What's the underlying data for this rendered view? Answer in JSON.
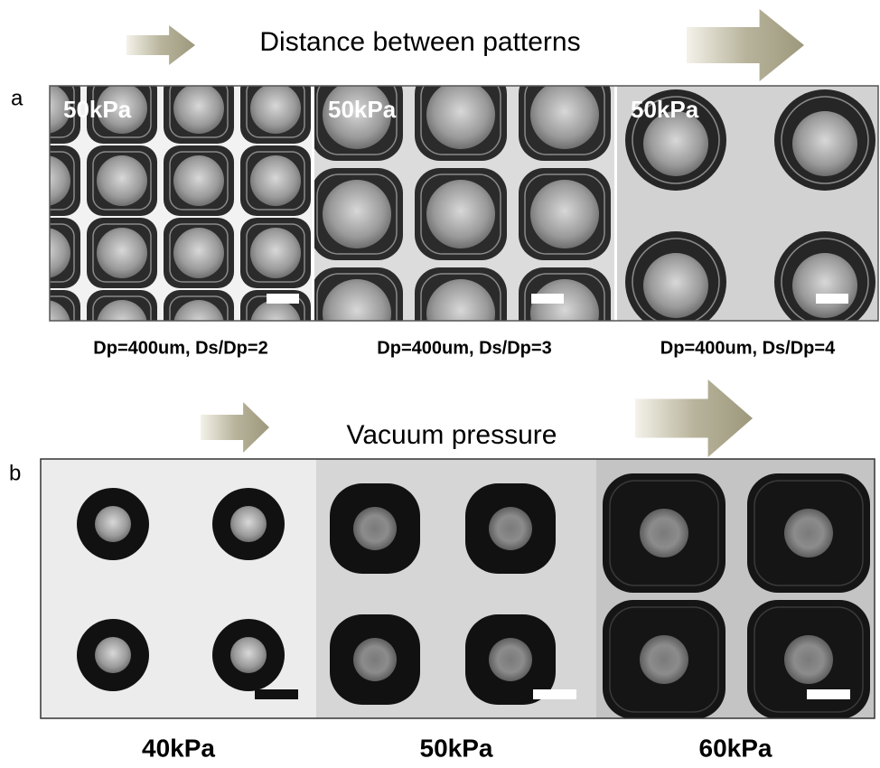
{
  "panel_a": {
    "label": "a",
    "arrow_title": "Distance between patterns",
    "images": [
      {
        "pressure_label": "50kPa",
        "caption": "Dp=400um, Ds/Dp=2"
      },
      {
        "pressure_label": "50kPa",
        "caption": "Dp=400um, Ds/Dp=3"
      },
      {
        "pressure_label": "50kPa",
        "caption": "Dp=400um, Ds/Dp=4"
      }
    ]
  },
  "panel_b": {
    "label": "b",
    "arrow_title": "Vacuum pressure",
    "images": [
      {
        "caption": "40kPa"
      },
      {
        "caption": "50kPa"
      },
      {
        "caption": "60kPa"
      }
    ]
  }
}
